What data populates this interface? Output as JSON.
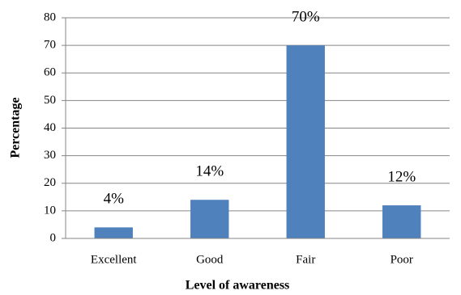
{
  "chart_data": {
    "type": "bar",
    "x_label": "Level of awareness",
    "y_label": "Percentage",
    "categories": [
      "Excellent",
      "Good",
      "Fair",
      "Poor"
    ],
    "values": [
      4,
      14,
      70,
      12
    ],
    "value_labels": [
      "4%",
      "14%",
      "70%",
      "12%"
    ],
    "color": "#4f81bd",
    "ylim": [
      0,
      80
    ],
    "yticks": [
      0,
      10,
      20,
      30,
      40,
      50,
      60,
      70,
      80
    ],
    "grid": true
  }
}
